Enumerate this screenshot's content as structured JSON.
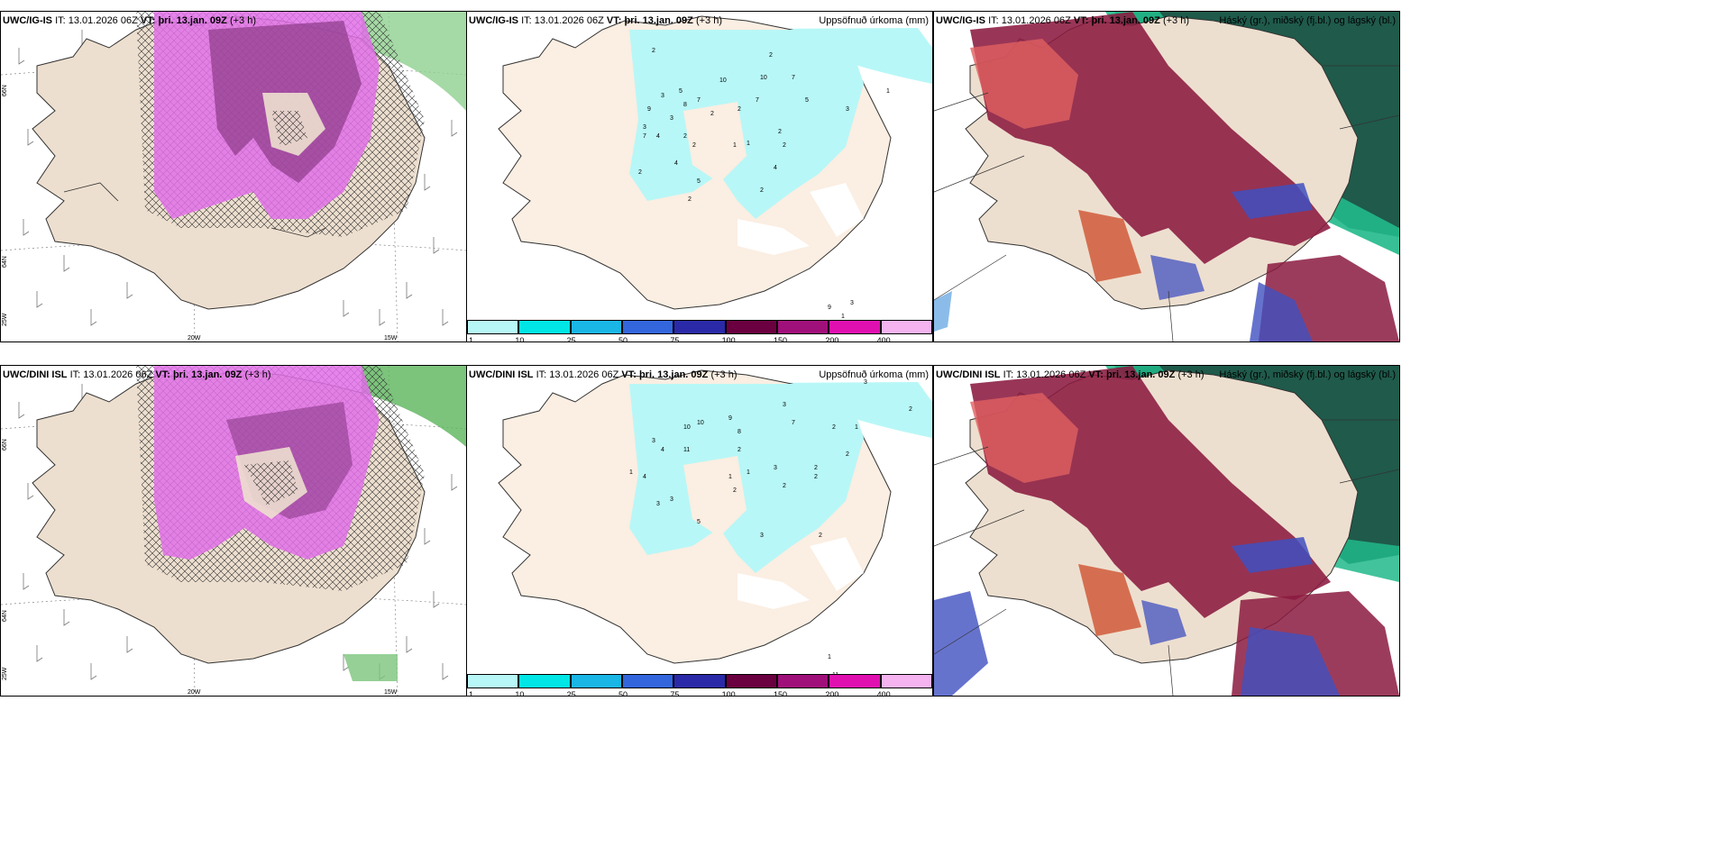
{
  "rows": [
    {
      "model": "UWC/IG-IS",
      "it_label": "IT:",
      "it_value": "13.01.2026 06Z",
      "vt_label": "VT:",
      "vt_value": "þri. 13.jan. 09Z",
      "lead": "(+3 h)",
      "panel2_title": "Uppsöfnuð úrkoma (mm)",
      "panel3_title": "Háský (gr.), miðský (fj.bl.) og lágský (bl.)"
    },
    {
      "model": "UWC/DINI ISL",
      "it_label": "IT:",
      "it_value": "13.01.2026 06Z",
      "vt_label": "VT:",
      "vt_value": "þri. 13.jan. 09Z",
      "lead": "(+3 h)",
      "panel2_title": "Uppsöfnuð úrkoma (mm)",
      "panel3_title": "Háský (gr.), miðský (fj.bl.) og lágský (bl.)"
    }
  ],
  "lat_labels": [
    "66N",
    "64N"
  ],
  "lon_labels": [
    "20W",
    "15W"
  ],
  "lon_left_label": "25W",
  "colorbar": {
    "ticks": [
      "1",
      "10",
      "25",
      "50",
      "75",
      "100",
      "150",
      "200",
      "400"
    ],
    "colors": [
      "#b8f7f7",
      "#00e5e5",
      "#1ab6e6",
      "#3366dd",
      "#2a2aa8",
      "#6b0040",
      "#a0107a",
      "#e010b0",
      "#f5b3f0"
    ]
  },
  "precip_labels_top": [
    "2",
    "2",
    "3",
    "5",
    "7",
    "8",
    "10",
    "10",
    "7",
    "7",
    "2",
    "5",
    "2",
    "3",
    "4",
    "9",
    "2",
    "7",
    "2",
    "3",
    "1",
    "1",
    "2",
    "2",
    "4",
    "2",
    "2",
    "2",
    "5",
    "2",
    "3",
    "1",
    "9",
    "3",
    "1"
  ],
  "precip_labels_bottom": [
    "3",
    "2",
    "1",
    "3",
    "9",
    "7",
    "8",
    "2",
    "10",
    "10",
    "4",
    "11",
    "2",
    "3",
    "2",
    "1",
    "1",
    "3",
    "2",
    "4",
    "3",
    "5",
    "2",
    "2",
    "3",
    "2",
    "2",
    "3",
    "11",
    "1",
    "2"
  ]
}
